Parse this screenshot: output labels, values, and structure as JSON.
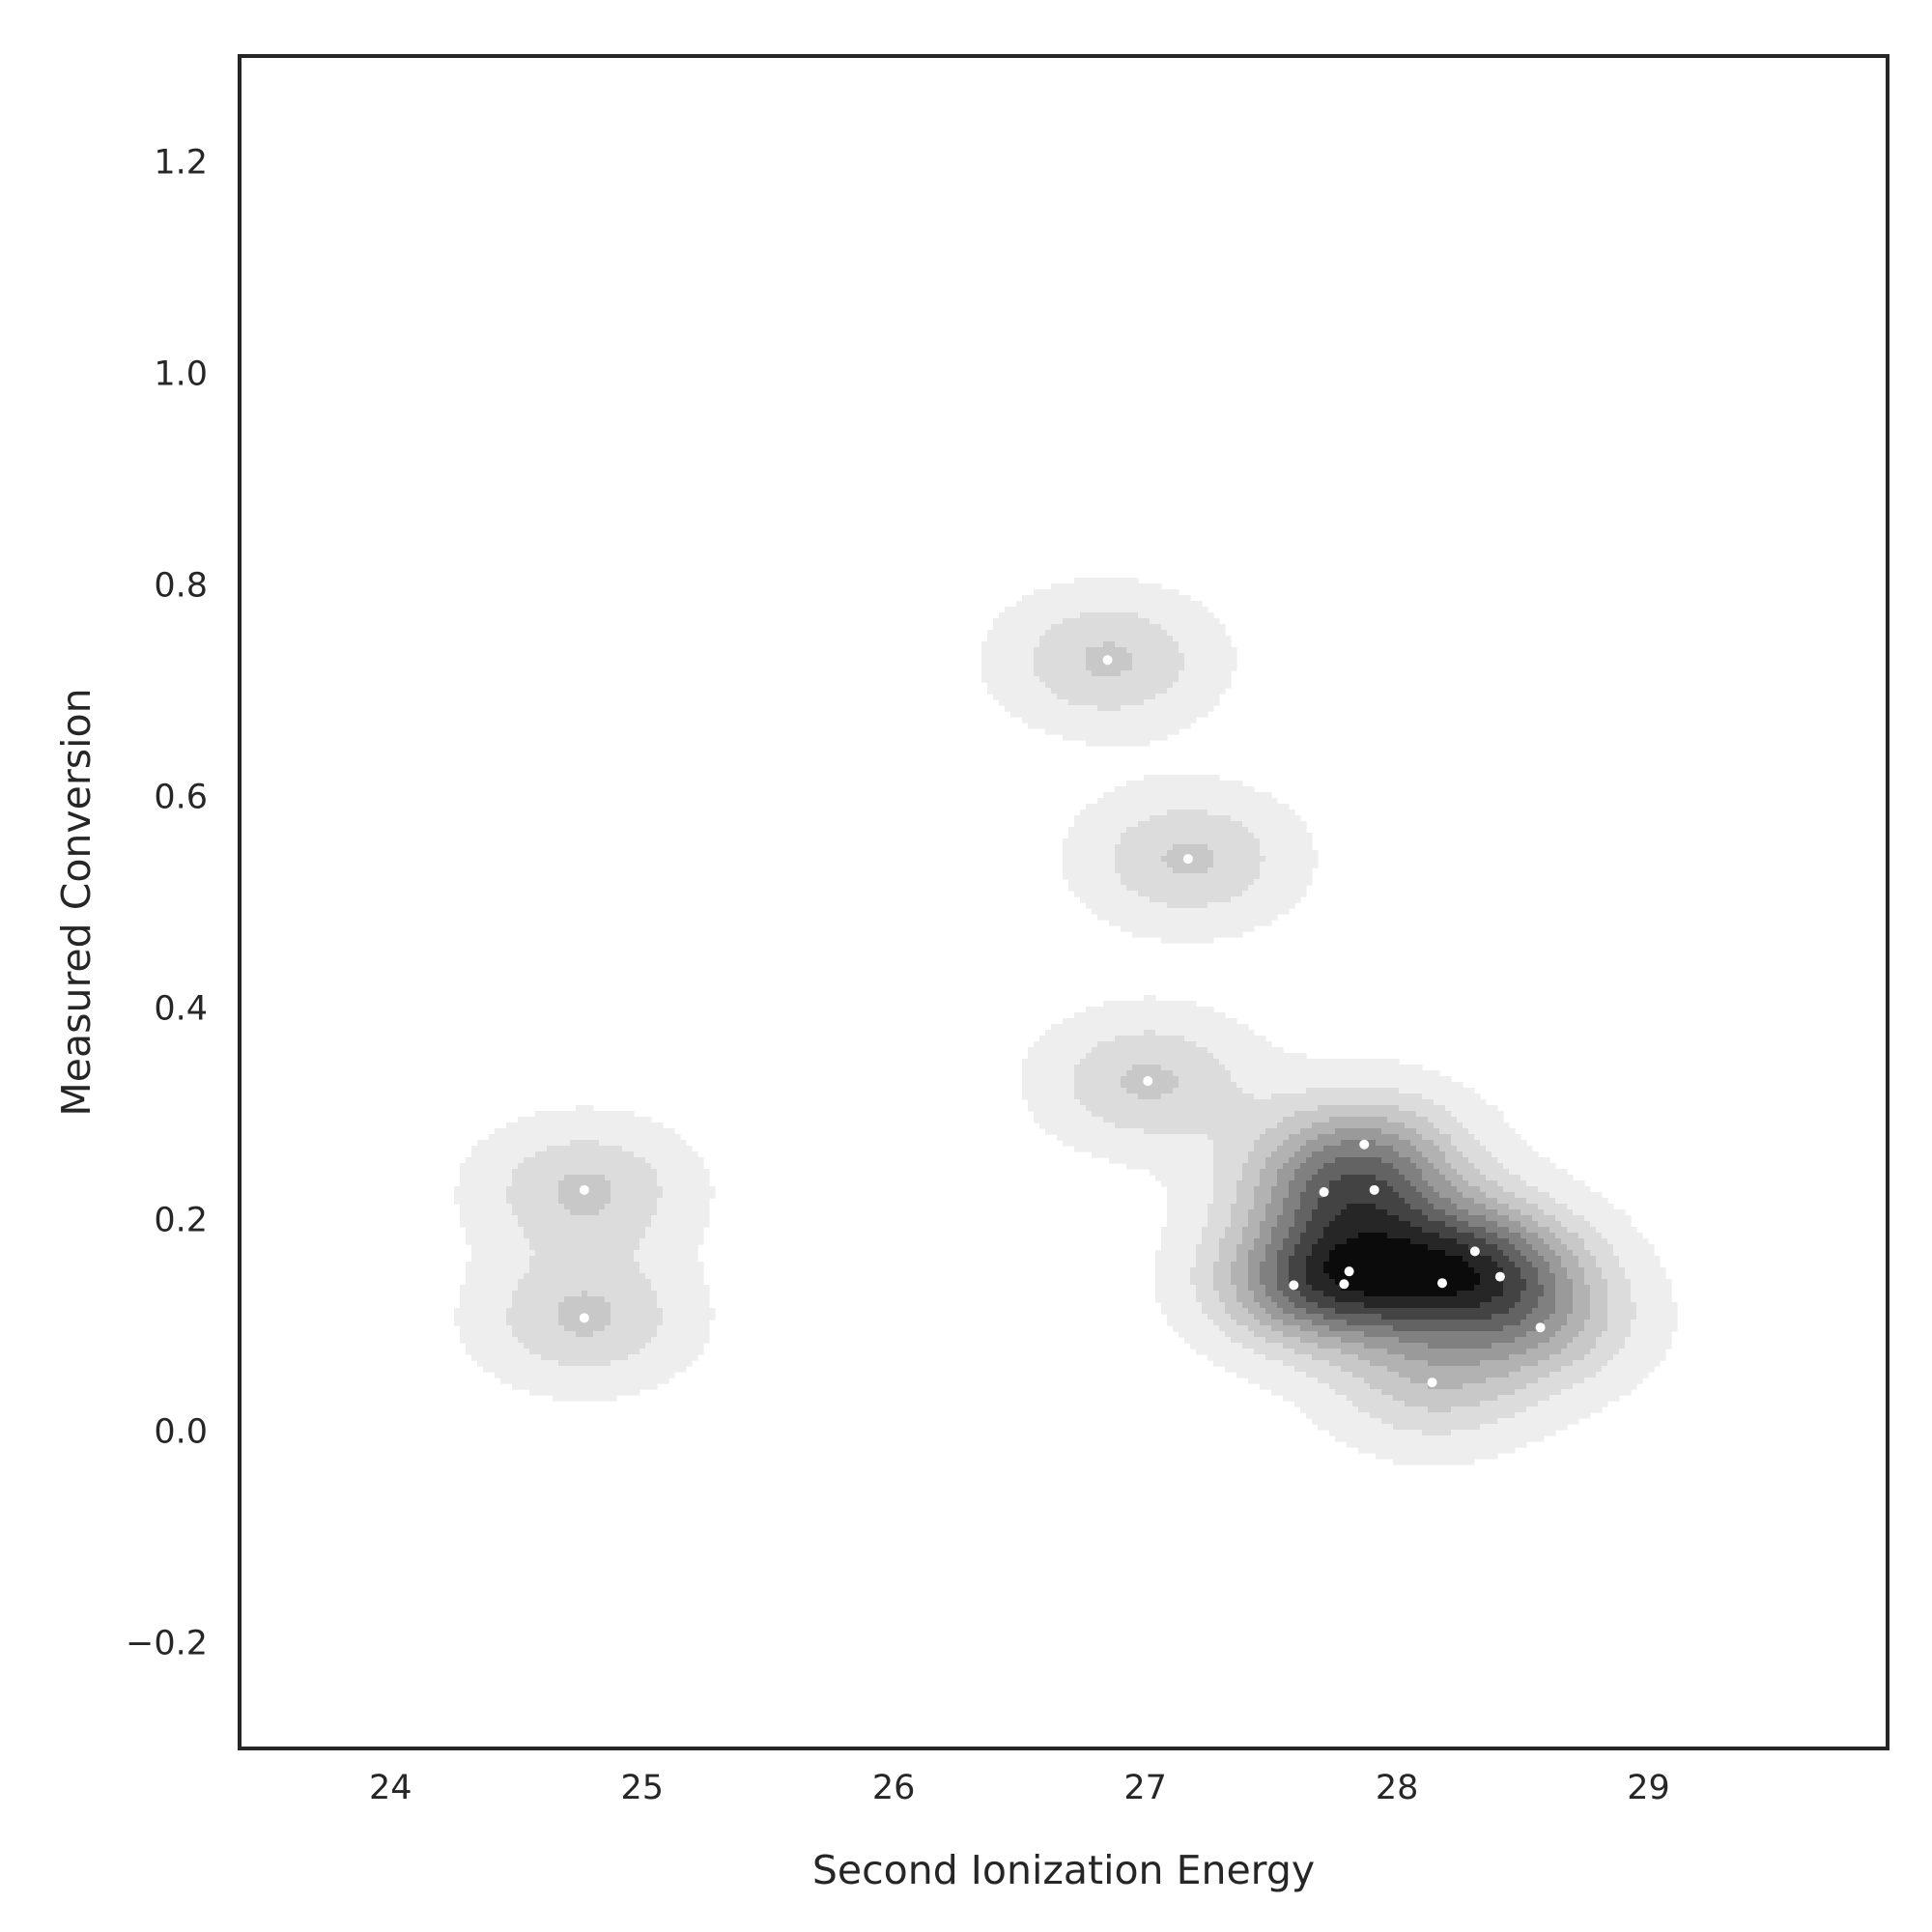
{
  "chart_data": {
    "type": "scatter",
    "subtype": "kde-density-contour",
    "title": "",
    "xlabel": "Second Ionization Energy",
    "ylabel": "Measured Conversion",
    "xlim": [
      23.4,
      29.95
    ],
    "ylim": [
      -0.3,
      1.3
    ],
    "xticks": [
      24,
      25,
      26,
      27,
      28,
      29
    ],
    "xtick_labels": [
      "24",
      "25",
      "26",
      "27",
      "28",
      "29"
    ],
    "yticks": [
      -0.2,
      0.0,
      0.2,
      0.4,
      0.6,
      0.8,
      1.0,
      1.2
    ],
    "ytick_labels": [
      "−0.2",
      "0.0",
      "0.2",
      "0.4",
      "0.6",
      "0.8",
      "1.0",
      "1.2"
    ],
    "grid": false,
    "legend": "none",
    "colors": {
      "background": "#ffffff",
      "frame": "#262626",
      "points": "#ffffff",
      "density_levels": [
        "#eeeeee",
        "#dcdcdc",
        "#c8c8c8",
        "#b2b2b2",
        "#9a9a9a",
        "#808080",
        "#636363",
        "#434343",
        "#262626",
        "#0b0b0b"
      ]
    },
    "series": [
      {
        "x": [
          24.77,
          24.77,
          26.85,
          27.17,
          27.01,
          27.87,
          27.71,
          27.91,
          27.81,
          27.79,
          27.59,
          28.31,
          28.41,
          28.18,
          28.57,
          28.14
        ],
        "y": [
          0.228,
          0.107,
          0.729,
          0.541,
          0.331,
          0.271,
          0.226,
          0.228,
          0.151,
          0.139,
          0.138,
          0.17,
          0.146,
          0.14,
          0.098,
          0.046
        ]
      }
    ]
  }
}
